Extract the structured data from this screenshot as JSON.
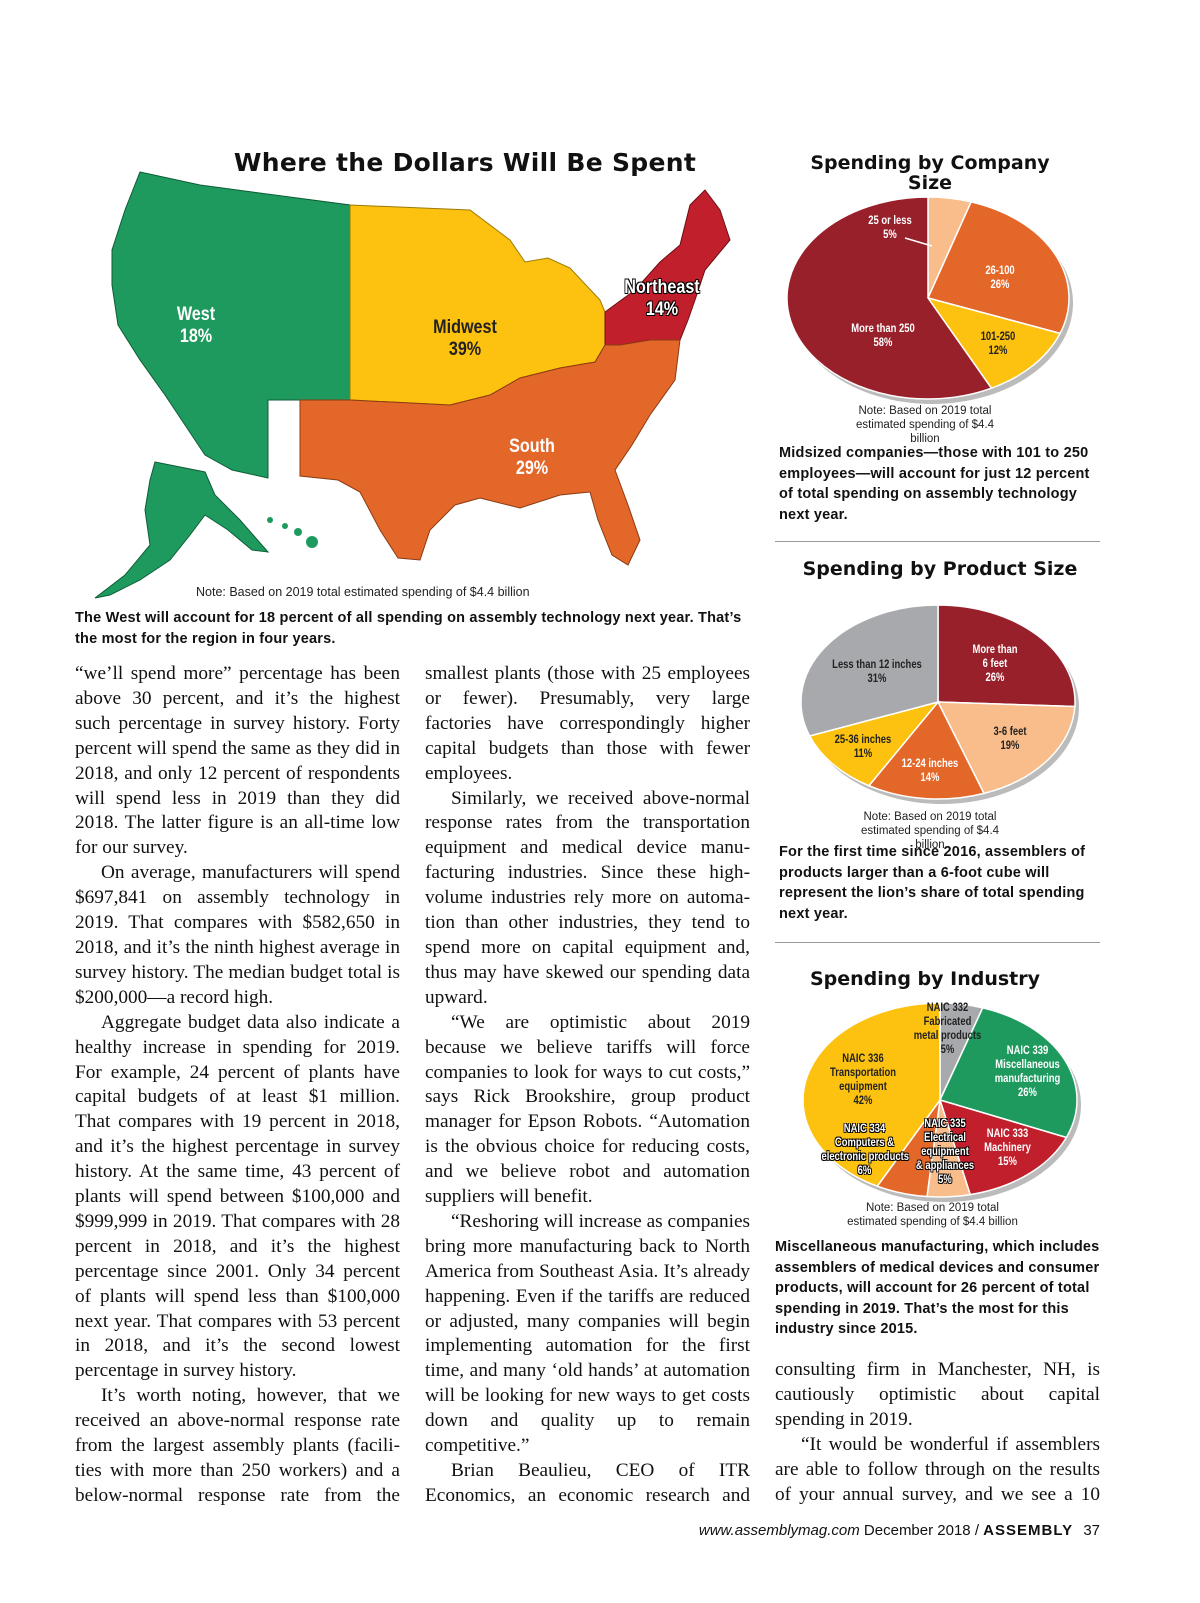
{
  "map": {
    "title": "Where the Dollars Will Be Spent",
    "regions": [
      {
        "name": "West",
        "pct": "18%",
        "color": "#1f9a5e"
      },
      {
        "name": "Midwest",
        "pct": "39%",
        "color": "#fcc20f"
      },
      {
        "name": "Northeast",
        "pct": "14%",
        "color": "#c01f2b"
      },
      {
        "name": "South",
        "pct": "29%",
        "color": "#e4672a"
      }
    ],
    "note": "Note: Based on 2019 total estimated spending of $4.4 billion",
    "caption": "The West will account for 18 percent of all spending on assembly technology next year. That’s the most for the region in four years."
  },
  "chart_data": [
    {
      "type": "pie",
      "title": "Spending by Company Size",
      "slices": [
        {
          "label": "25 or less",
          "value": 5,
          "text": "5%",
          "color": "#f9bd8c"
        },
        {
          "label": "26-100",
          "value": 26,
          "text": "26%",
          "color": "#e4672a"
        },
        {
          "label": "101-250",
          "value": 12,
          "text": "12%",
          "color": "#fcc20f"
        },
        {
          "label": "More than 250",
          "value": 58,
          "text": "58%",
          "color": "#98202a"
        }
      ],
      "note": "Note: Based on 2019 total estimated spending of $4.4 billion",
      "caption": "Midsized companies—those with 101 to 250 employees—will account for just 12 percent of total spending on assembly technology next year."
    },
    {
      "type": "pie",
      "title": "Spending by Product Size",
      "slices": [
        {
          "label": "More than 6 feet",
          "value": 26,
          "text": "26%",
          "color": "#98202a"
        },
        {
          "label": "3-6 feet",
          "value": 19,
          "text": "19%",
          "color": "#f9bd8c"
        },
        {
          "label": "12-24 inches",
          "value": 14,
          "text": "14%",
          "color": "#e4672a"
        },
        {
          "label": "25-36 inches",
          "value": 11,
          "text": "11%",
          "color": "#fcc20f"
        },
        {
          "label": "Less than 12 inches",
          "value": 31,
          "text": "31%",
          "color": "#a7a9ac"
        }
      ],
      "note": "Note: Based on 2019 total estimated spending of $4.4 billion",
      "caption": "For the first time since 2016, assemblers of products larger than a 6-foot cube will represent the lion’s share of total spending next year."
    },
    {
      "type": "pie",
      "title": "Spending by Industry",
      "slices": [
        {
          "label": "NAIC 332 Fabricated metal products",
          "value": 5,
          "text": "5%",
          "color": "#a7a9ac"
        },
        {
          "label": "NAIC 339 Miscellaneous manufacturing",
          "value": 26,
          "text": "26%",
          "color": "#1f9a5e"
        },
        {
          "label": "NAIC 333 Machinery",
          "value": 15,
          "text": "15%",
          "color": "#c01f2b"
        },
        {
          "label": "NAIC 335 Electrical equipment & appliances",
          "value": 5,
          "text": "5%",
          "color": "#f9bd8c"
        },
        {
          "label": "NAIC 334 Computers & electronic products",
          "value": 6,
          "text": "6%",
          "color": "#e4672a"
        },
        {
          "label": "NAIC 336 Transportation equipment",
          "value": 42,
          "text": "42%",
          "color": "#fcc20f"
        }
      ],
      "note": "Note: Based on 2019 total estimated spending of $4.4 billion",
      "caption": "Miscellaneous manufacturing, which includes assemblers of medical devices and consumer products, will account for 26 percent of total spending in 2019. That’s the most for this industry since 2015."
    }
  ],
  "article": {
    "col1": [
      "“we’ll spend more” percentage has been above 30 percent, and it’s the highest such percentage in survey history. Forty percent will spend the same as they did in 2018, and only 12 percent of respon­dents will spend less in 2019 than they did 2018. The latter figure is an all-time low for our survey.",
      "On average, manufacturers will spend $697,841 on assembly technology in 2019. That compares with $582,650 in 2018, and it’s the ninth highest average in survey history. The median budget total is $200,000—a record high.",
      "Aggregate budget data also indicate a healthy increase in spending for 2019. For example, 24 percent of plants have capital budgets of at least $1 million. That compares with 19 percent in 2018, and it’s the highest percentage in survey history. At the same time, 43 percent of plants will spend between $100,000 and $999,999 in 2019. That compares with 28 percent in 2018, and it’s the highest percentage since 2001. Only 34 percent of plants will spend less than $100,000 next year. That compares with 53 per­cent in 2018, and it’s the second lowest percentage in survey history.",
      "It’s worth noting, however, that we received an above-normal response rate from the largest assembly plants (facili­ties with more than 250 workers) and a below-normal response rate from the"
    ],
    "col2": [
      "smallest plants (those with 25 employ­ees or fewer). Presumably, very large factories have correspondingly higher capital budgets than those with fewer employees.",
      "Similarly, we received above-normal response rates from the transportation equipment and medical device manu­facturing industries. Since these high-volume industries rely more on automa­tion than other industries, they tend to spend more on capital equipment and, thus may have skewed our spending data upward.",
      "“We are optimistic about 2019 because we believe tariffs will force companies to look for ways to cut costs,” says Rick Brookshire, group product manager for Epson Robots. “Automation is the obvious choice for reducing costs, and we believe robot and automation suppliers will benefit.",
      "“Reshoring will increase as compa­nies bring more manufacturing back to North America from Southeast Asia. It’s already happening. Even if the tariffs are reduced or adjusted, many companies will begin implementing automation for the first time, and many ‘old hands’ at automation will be look­ing for new ways to get costs down and quality up to remain competitive.”",
      "Brian Beaulieu, CEO of ITR Economics, an economic research and"
    ],
    "col3": [
      "consulting firm in Manchester, NH, is cautiously optimistic about capital spending in 2019.",
      "“It would be wonderful if assemblers are able to follow through on the results of your annual survey, and we see a 10"
    ]
  },
  "footer": {
    "url": "www.assemblymag.com",
    "issue": "December 2018 /",
    "magazine": "ASSEMBLY",
    "page": "37"
  }
}
